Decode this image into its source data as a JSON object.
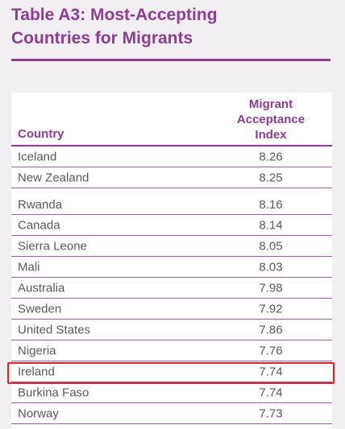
{
  "title_line1": "Table A3: Most-Accepting",
  "title_line2": "Countries for Migrants",
  "headers": {
    "country": "Country",
    "index_line1": "Migrant",
    "index_line2": "Acceptance",
    "index_line3": "Index"
  },
  "rows": [
    {
      "country": "Iceland",
      "value": "8.26"
    },
    {
      "country": "New Zealand",
      "value": "8.25"
    },
    {
      "country": "Rwanda",
      "value": "8.16"
    },
    {
      "country": "Canada",
      "value": "8.14"
    },
    {
      "country": "Sierra Leone",
      "value": "8.05"
    },
    {
      "country": "Mali",
      "value": "8.03"
    },
    {
      "country": "Australia",
      "value": "7.98"
    },
    {
      "country": "Sweden",
      "value": "7.92"
    },
    {
      "country": "United States",
      "value": "7.86"
    },
    {
      "country": "Nigeria",
      "value": "7.76"
    },
    {
      "country": "Ireland",
      "value": "7.74"
    },
    {
      "country": "Burkina Faso",
      "value": "7.74"
    },
    {
      "country": "Norway",
      "value": "7.73"
    }
  ],
  "highlight_color": "#d8262b",
  "accent_color": "#8e3d95"
}
